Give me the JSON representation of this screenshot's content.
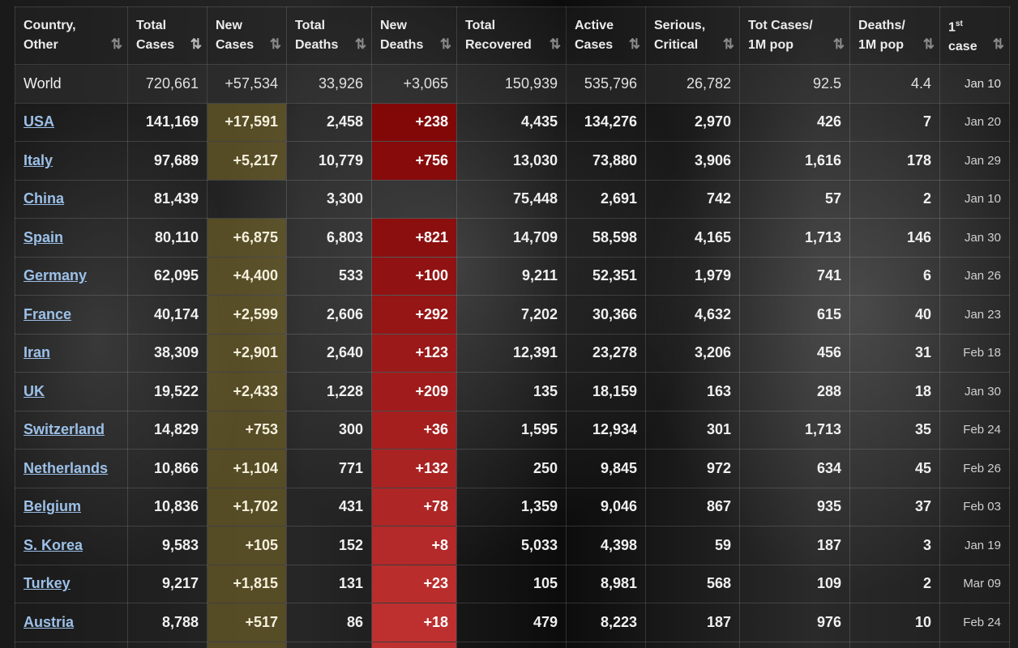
{
  "headers": [
    {
      "line1": "Country,",
      "line2": "Other",
      "sort": "⇅",
      "active": false
    },
    {
      "line1": "Total",
      "line2": "Cases",
      "sort": "⇅",
      "active": true
    },
    {
      "line1": "New",
      "line2": "Cases",
      "sort": "⇅",
      "active": false
    },
    {
      "line1": "Total",
      "line2": "Deaths",
      "sort": "⇅",
      "active": false
    },
    {
      "line1": "New",
      "line2": "Deaths",
      "sort": "⇅",
      "active": false
    },
    {
      "line1": "Total",
      "line2": "Recovered",
      "sort": "⇅",
      "active": false
    },
    {
      "line1": "Active",
      "line2": "Cases",
      "sort": "⇅",
      "active": false
    },
    {
      "line1": "Serious,",
      "line2": "Critical",
      "sort": "⇅",
      "active": false
    },
    {
      "line1": "Tot Cases/",
      "line2": "1M pop",
      "sort": "⇅",
      "active": false
    },
    {
      "line1": "Deaths/",
      "line2": "1M pop",
      "sort": "⇅",
      "active": false
    },
    {
      "line1": "1",
      "sup": "st",
      "line2": "case",
      "sort": "⇅",
      "active": false
    }
  ],
  "rows": [
    {
      "country": "World",
      "link": false,
      "total_cases": "720,661",
      "new_cases": "+57,534",
      "total_deaths": "33,926",
      "new_deaths": "+3,065",
      "total_recovered": "150,939",
      "active_cases": "535,796",
      "serious": "26,782",
      "cases_per_1m": "92.5",
      "deaths_per_1m": "4.4",
      "first_case": "Jan 10"
    },
    {
      "country": "USA",
      "link": true,
      "total_cases": "141,169",
      "new_cases": "+17,591",
      "total_deaths": "2,458",
      "new_deaths": "+238",
      "total_recovered": "4,435",
      "active_cases": "134,276",
      "serious": "2,970",
      "cases_per_1m": "426",
      "deaths_per_1m": "7",
      "first_case": "Jan 20"
    },
    {
      "country": "Italy",
      "link": true,
      "total_cases": "97,689",
      "new_cases": "+5,217",
      "total_deaths": "10,779",
      "new_deaths": "+756",
      "total_recovered": "13,030",
      "active_cases": "73,880",
      "serious": "3,906",
      "cases_per_1m": "1,616",
      "deaths_per_1m": "178",
      "first_case": "Jan 29"
    },
    {
      "country": "China",
      "link": true,
      "total_cases": "81,439",
      "new_cases": "",
      "total_deaths": "3,300",
      "new_deaths": "",
      "total_recovered": "75,448",
      "active_cases": "2,691",
      "serious": "742",
      "cases_per_1m": "57",
      "deaths_per_1m": "2",
      "first_case": "Jan 10"
    },
    {
      "country": "Spain",
      "link": true,
      "total_cases": "80,110",
      "new_cases": "+6,875",
      "total_deaths": "6,803",
      "new_deaths": "+821",
      "total_recovered": "14,709",
      "active_cases": "58,598",
      "serious": "4,165",
      "cases_per_1m": "1,713",
      "deaths_per_1m": "146",
      "first_case": "Jan 30"
    },
    {
      "country": "Germany",
      "link": true,
      "total_cases": "62,095",
      "new_cases": "+4,400",
      "total_deaths": "533",
      "new_deaths": "+100",
      "total_recovered": "9,211",
      "active_cases": "52,351",
      "serious": "1,979",
      "cases_per_1m": "741",
      "deaths_per_1m": "6",
      "first_case": "Jan 26"
    },
    {
      "country": "France",
      "link": true,
      "total_cases": "40,174",
      "new_cases": "+2,599",
      "total_deaths": "2,606",
      "new_deaths": "+292",
      "total_recovered": "7,202",
      "active_cases": "30,366",
      "serious": "4,632",
      "cases_per_1m": "615",
      "deaths_per_1m": "40",
      "first_case": "Jan 23"
    },
    {
      "country": "Iran",
      "link": true,
      "total_cases": "38,309",
      "new_cases": "+2,901",
      "total_deaths": "2,640",
      "new_deaths": "+123",
      "total_recovered": "12,391",
      "active_cases": "23,278",
      "serious": "3,206",
      "cases_per_1m": "456",
      "deaths_per_1m": "31",
      "first_case": "Feb 18"
    },
    {
      "country": "UK",
      "link": true,
      "total_cases": "19,522",
      "new_cases": "+2,433",
      "total_deaths": "1,228",
      "new_deaths": "+209",
      "total_recovered": "135",
      "active_cases": "18,159",
      "serious": "163",
      "cases_per_1m": "288",
      "deaths_per_1m": "18",
      "first_case": "Jan 30"
    },
    {
      "country": "Switzerland",
      "link": true,
      "total_cases": "14,829",
      "new_cases": "+753",
      "total_deaths": "300",
      "new_deaths": "+36",
      "total_recovered": "1,595",
      "active_cases": "12,934",
      "serious": "301",
      "cases_per_1m": "1,713",
      "deaths_per_1m": "35",
      "first_case": "Feb 24"
    },
    {
      "country": "Netherlands",
      "link": true,
      "total_cases": "10,866",
      "new_cases": "+1,104",
      "total_deaths": "771",
      "new_deaths": "+132",
      "total_recovered": "250",
      "active_cases": "9,845",
      "serious": "972",
      "cases_per_1m": "634",
      "deaths_per_1m": "45",
      "first_case": "Feb 26"
    },
    {
      "country": "Belgium",
      "link": true,
      "total_cases": "10,836",
      "new_cases": "+1,702",
      "total_deaths": "431",
      "new_deaths": "+78",
      "total_recovered": "1,359",
      "active_cases": "9,046",
      "serious": "867",
      "cases_per_1m": "935",
      "deaths_per_1m": "37",
      "first_case": "Feb 03"
    },
    {
      "country": "S. Korea",
      "link": true,
      "total_cases": "9,583",
      "new_cases": "+105",
      "total_deaths": "152",
      "new_deaths": "+8",
      "total_recovered": "5,033",
      "active_cases": "4,398",
      "serious": "59",
      "cases_per_1m": "187",
      "deaths_per_1m": "3",
      "first_case": "Jan 19"
    },
    {
      "country": "Turkey",
      "link": true,
      "total_cases": "9,217",
      "new_cases": "+1,815",
      "total_deaths": "131",
      "new_deaths": "+23",
      "total_recovered": "105",
      "active_cases": "8,981",
      "serious": "568",
      "cases_per_1m": "109",
      "deaths_per_1m": "2",
      "first_case": "Mar 09"
    },
    {
      "country": "Austria",
      "link": true,
      "total_cases": "8,788",
      "new_cases": "+517",
      "total_deaths": "86",
      "new_deaths": "+18",
      "total_recovered": "479",
      "active_cases": "8,223",
      "serious": "187",
      "cases_per_1m": "976",
      "deaths_per_1m": "10",
      "first_case": "Feb 24"
    }
  ],
  "colors": {
    "new_cases_highlight": "#806e28",
    "new_deaths_highlight": "#b01e1e",
    "link": "#9cc0e8"
  }
}
